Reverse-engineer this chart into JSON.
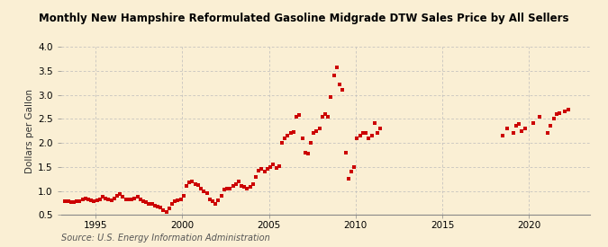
{
  "title": "Monthly New Hampshire Reformulated Gasoline Midgrade DTW Sales Price by All Sellers",
  "ylabel": "Dollars per Gallon",
  "source": "Source: U.S. Energy Information Administration",
  "background_color": "#faefd4",
  "marker_color": "#cc0000",
  "xlim": [
    1993.0,
    2023.5
  ],
  "ylim": [
    0.5,
    4.0
  ],
  "yticks": [
    0.5,
    1.0,
    1.5,
    2.0,
    2.5,
    3.0,
    3.5,
    4.0
  ],
  "xticks": [
    1995,
    2000,
    2005,
    2010,
    2015,
    2020
  ],
  "data": [
    [
      1993.25,
      0.79
    ],
    [
      1993.42,
      0.78
    ],
    [
      1993.58,
      0.77
    ],
    [
      1993.75,
      0.77
    ],
    [
      1993.92,
      0.78
    ],
    [
      1994.08,
      0.79
    ],
    [
      1994.25,
      0.82
    ],
    [
      1994.42,
      0.84
    ],
    [
      1994.58,
      0.83
    ],
    [
      1994.75,
      0.8
    ],
    [
      1994.92,
      0.79
    ],
    [
      1995.08,
      0.8
    ],
    [
      1995.25,
      0.83
    ],
    [
      1995.42,
      0.87
    ],
    [
      1995.58,
      0.85
    ],
    [
      1995.75,
      0.82
    ],
    [
      1995.92,
      0.81
    ],
    [
      1996.08,
      0.84
    ],
    [
      1996.25,
      0.9
    ],
    [
      1996.42,
      0.93
    ],
    [
      1996.58,
      0.88
    ],
    [
      1996.75,
      0.82
    ],
    [
      1996.92,
      0.83
    ],
    [
      1997.08,
      0.83
    ],
    [
      1997.25,
      0.85
    ],
    [
      1997.42,
      0.87
    ],
    [
      1997.58,
      0.83
    ],
    [
      1997.75,
      0.79
    ],
    [
      1997.92,
      0.77
    ],
    [
      1998.08,
      0.73
    ],
    [
      1998.25,
      0.72
    ],
    [
      1998.42,
      0.7
    ],
    [
      1998.58,
      0.68
    ],
    [
      1998.75,
      0.65
    ],
    [
      1998.92,
      0.6
    ],
    [
      1999.08,
      0.56
    ],
    [
      1999.25,
      0.63
    ],
    [
      1999.42,
      0.72
    ],
    [
      1999.58,
      0.78
    ],
    [
      1999.75,
      0.8
    ],
    [
      1999.92,
      0.83
    ],
    [
      2000.08,
      0.9
    ],
    [
      2000.25,
      1.1
    ],
    [
      2000.42,
      1.18
    ],
    [
      2000.58,
      1.2
    ],
    [
      2000.75,
      1.15
    ],
    [
      2000.92,
      1.12
    ],
    [
      2001.08,
      1.05
    ],
    [
      2001.25,
      1.0
    ],
    [
      2001.42,
      0.96
    ],
    [
      2001.58,
      0.82
    ],
    [
      2001.75,
      0.78
    ],
    [
      2001.92,
      0.73
    ],
    [
      2002.08,
      0.8
    ],
    [
      2002.25,
      0.9
    ],
    [
      2002.42,
      1.02
    ],
    [
      2002.58,
      1.05
    ],
    [
      2002.75,
      1.05
    ],
    [
      2002.92,
      1.1
    ],
    [
      2003.08,
      1.15
    ],
    [
      2003.25,
      1.2
    ],
    [
      2003.42,
      1.1
    ],
    [
      2003.58,
      1.08
    ],
    [
      2003.75,
      1.05
    ],
    [
      2003.92,
      1.08
    ],
    [
      2004.08,
      1.15
    ],
    [
      2004.25,
      1.3
    ],
    [
      2004.42,
      1.42
    ],
    [
      2004.58,
      1.45
    ],
    [
      2004.75,
      1.4
    ],
    [
      2004.92,
      1.45
    ],
    [
      2005.08,
      1.5
    ],
    [
      2005.25,
      1.55
    ],
    [
      2005.42,
      1.48
    ],
    [
      2005.58,
      1.52
    ],
    [
      2005.75,
      2.0
    ],
    [
      2005.92,
      2.1
    ],
    [
      2006.08,
      2.15
    ],
    [
      2006.25,
      2.2
    ],
    [
      2006.42,
      2.22
    ],
    [
      2006.58,
      2.55
    ],
    [
      2006.75,
      2.58
    ],
    [
      2006.92,
      2.1
    ],
    [
      2007.08,
      1.8
    ],
    [
      2007.25,
      1.78
    ],
    [
      2007.42,
      2.0
    ],
    [
      2007.58,
      2.2
    ],
    [
      2007.75,
      2.25
    ],
    [
      2007.92,
      2.3
    ],
    [
      2008.08,
      2.55
    ],
    [
      2008.25,
      2.6
    ],
    [
      2008.42,
      2.55
    ],
    [
      2008.58,
      2.95
    ],
    [
      2008.75,
      3.4
    ],
    [
      2008.92,
      3.58
    ],
    [
      2009.08,
      3.22
    ],
    [
      2009.25,
      3.1
    ],
    [
      2009.42,
      1.8
    ],
    [
      2009.58,
      1.25
    ],
    [
      2009.75,
      1.4
    ],
    [
      2009.92,
      1.5
    ],
    [
      2010.08,
      2.1
    ],
    [
      2010.25,
      2.15
    ],
    [
      2010.42,
      2.2
    ],
    [
      2010.58,
      2.2
    ],
    [
      2010.75,
      2.1
    ],
    [
      2010.92,
      2.15
    ],
    [
      2011.08,
      2.42
    ],
    [
      2011.25,
      2.2
    ],
    [
      2011.42,
      2.3
    ],
    [
      2018.5,
      2.15
    ],
    [
      2018.75,
      2.3
    ],
    [
      2019.08,
      2.2
    ],
    [
      2019.25,
      2.35
    ],
    [
      2019.42,
      2.4
    ],
    [
      2019.58,
      2.25
    ],
    [
      2019.75,
      2.3
    ],
    [
      2020.25,
      2.42
    ],
    [
      2020.58,
      2.55
    ],
    [
      2021.08,
      2.2
    ],
    [
      2021.25,
      2.35
    ],
    [
      2021.42,
      2.5
    ],
    [
      2021.58,
      2.6
    ],
    [
      2021.75,
      2.62
    ],
    [
      2022.08,
      2.65
    ],
    [
      2022.25,
      2.7
    ]
  ]
}
